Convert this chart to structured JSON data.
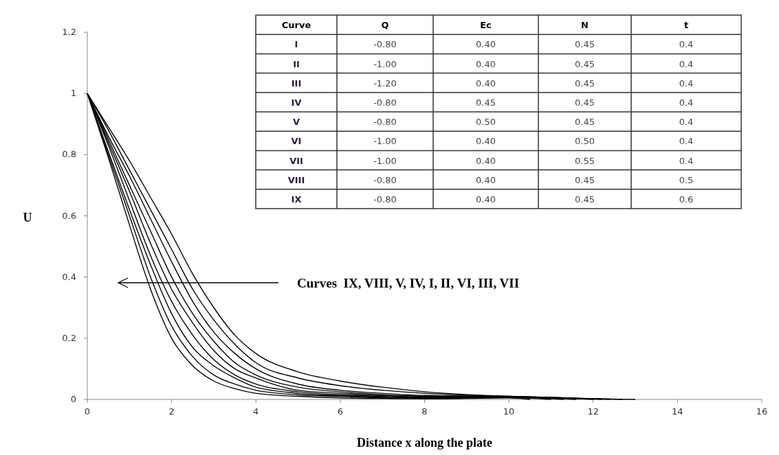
{
  "chart_data": [
    {
      "type": "line",
      "xlabel": "Distance x along the plate",
      "ylabel": "U",
      "series": [
        {
          "color": "#000000",
          "x": [
            0,
            0.5,
            1,
            1.5,
            2,
            2.5,
            3,
            3.5,
            4,
            5,
            6,
            7,
            8,
            10,
            10.5
          ],
          "values": [
            1,
            0.79,
            0.57,
            0.36,
            0.2,
            0.11,
            0.06,
            0.035,
            0.02,
            0.01,
            0.005,
            0.003,
            0.002,
            0.005,
            0
          ]
        },
        {
          "color": "#000000",
          "x": [
            0,
            0.5,
            1,
            1.5,
            2,
            2.5,
            3,
            3.5,
            4,
            5,
            6,
            7,
            8,
            10,
            11
          ],
          "values": [
            1,
            0.8,
            0.6,
            0.4,
            0.24,
            0.14,
            0.08,
            0.05,
            0.03,
            0.015,
            0.01,
            0.005,
            0.004,
            0.006,
            0
          ]
        },
        {
          "color": "#000000",
          "x": [
            0,
            0.5,
            1,
            1.5,
            2,
            2.5,
            3,
            3.5,
            4,
            5,
            6,
            7,
            8,
            10,
            11.3
          ],
          "values": [
            1,
            0.81,
            0.62,
            0.44,
            0.28,
            0.17,
            0.11,
            0.07,
            0.04,
            0.02,
            0.012,
            0.007,
            0.005,
            0.007,
            0
          ]
        },
        {
          "color": "#000000",
          "x": [
            0,
            0.5,
            1,
            1.5,
            2,
            2.5,
            3,
            3.5,
            4,
            5,
            6,
            7,
            8,
            10,
            11.6
          ],
          "values": [
            1,
            0.83,
            0.65,
            0.47,
            0.32,
            0.21,
            0.13,
            0.08,
            0.05,
            0.025,
            0.015,
            0.01,
            0.007,
            0.008,
            0
          ]
        },
        {
          "color": "#000000",
          "x": [
            0,
            0.5,
            1,
            1.5,
            2,
            2.5,
            3,
            3.5,
            4,
            5,
            6,
            7,
            8,
            10,
            12
          ],
          "values": [
            1,
            0.84,
            0.68,
            0.51,
            0.36,
            0.25,
            0.16,
            0.1,
            0.07,
            0.03,
            0.02,
            0.012,
            0.008,
            0.008,
            0
          ]
        },
        {
          "color": "#000000",
          "x": [
            0,
            0.5,
            1,
            1.5,
            2,
            2.5,
            3,
            3.5,
            4,
            5,
            6,
            7,
            8,
            10,
            12.2
          ],
          "values": [
            1,
            0.85,
            0.7,
            0.55,
            0.4,
            0.28,
            0.19,
            0.12,
            0.08,
            0.04,
            0.025,
            0.015,
            0.01,
            0.009,
            0
          ]
        },
        {
          "color": "#000000",
          "x": [
            0,
            0.5,
            1,
            1.5,
            2,
            2.5,
            3,
            3.5,
            4,
            5,
            6,
            7,
            8,
            10,
            12.4
          ],
          "values": [
            1,
            0.86,
            0.73,
            0.59,
            0.45,
            0.32,
            0.22,
            0.15,
            0.1,
            0.05,
            0.03,
            0.02,
            0.013,
            0.01,
            0
          ]
        },
        {
          "color": "#000000",
          "x": [
            0,
            0.5,
            1,
            1.5,
            2,
            2.5,
            3,
            3.5,
            4,
            5,
            6,
            7,
            8,
            10,
            12.7
          ],
          "values": [
            1,
            0.88,
            0.75,
            0.62,
            0.49,
            0.36,
            0.26,
            0.18,
            0.12,
            0.07,
            0.045,
            0.03,
            0.02,
            0.01,
            0
          ]
        },
        {
          "color": "#000000",
          "x": [
            0,
            0.5,
            1,
            1.5,
            2,
            2.5,
            3,
            3.5,
            4,
            5,
            6,
            7,
            8,
            10,
            13
          ],
          "values": [
            1,
            0.89,
            0.78,
            0.66,
            0.54,
            0.41,
            0.3,
            0.21,
            0.15,
            0.09,
            0.06,
            0.04,
            0.025,
            0.01,
            0
          ]
        }
      ],
      "xlim": [
        0,
        16
      ],
      "xticks": [
        0,
        2,
        4,
        6,
        8,
        10,
        12,
        14,
        16
      ],
      "ylim": [
        0,
        1.2
      ],
      "yticks": [
        0,
        0.2,
        0.4,
        0.6,
        0.8,
        1,
        1.2
      ],
      "annotations": [
        "Curves  IX, VIII, V, IV, I, II, VI, III, VII"
      ]
    },
    {
      "type": "other",
      "ylabel": "Curve",
      "categories": [
        "Q",
        "Ec",
        "N",
        "t"
      ],
      "y_categories": [
        "I",
        "II",
        "III",
        "IV",
        "V",
        "VI",
        "VII",
        "VIII",
        "IX"
      ],
      "cell_labels": [
        [
          "-0.80",
          "0.40",
          "0.45",
          "0.4"
        ],
        [
          "-1.00",
          "0.40",
          "0.45",
          "0.4"
        ],
        [
          "-1.20",
          "0.40",
          "0.45",
          "0.4"
        ],
        [
          "-0.80",
          "0.45",
          "0.45",
          "0.4"
        ],
        [
          "-0.80",
          "0.50",
          "0.45",
          "0.4"
        ],
        [
          "-1.00",
          "0.40",
          "0.50",
          "0.4"
        ],
        [
          "-1.00",
          "0.40",
          "0.55",
          "0.4"
        ],
        [
          "-0.80",
          "0.40",
          "0.45",
          "0.5"
        ],
        [
          "-0.80",
          "0.40",
          "0.45",
          "0.6"
        ]
      ]
    }
  ]
}
